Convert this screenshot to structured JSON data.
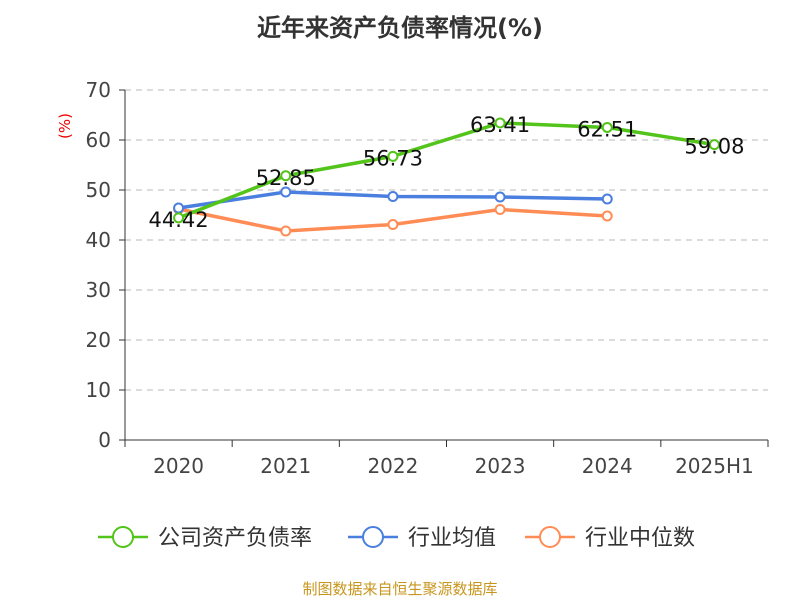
{
  "chart_data": {
    "type": "line",
    "title": "近年来资产负债率情况(%)",
    "ylabel": "(%)",
    "categories": [
      "2020",
      "2021",
      "2022",
      "2023",
      "2024",
      "2025H1"
    ],
    "ylim": [
      0,
      70
    ],
    "yticks": [
      0,
      10,
      20,
      30,
      40,
      50,
      60,
      70
    ],
    "grid": true,
    "legend_position": "bottom",
    "series": [
      {
        "name": "公司资产负债率",
        "color": "#52c41a",
        "values": [
          44.42,
          52.85,
          56.73,
          63.41,
          62.51,
          59.08
        ],
        "labels": [
          "44.42",
          "52.85",
          "56.73",
          "63.41",
          "62.51",
          "59.08"
        ]
      },
      {
        "name": "行业均值",
        "color": "#4a7fe0",
        "values": [
          46.4,
          49.6,
          48.7,
          48.6,
          48.2,
          null
        ]
      },
      {
        "name": "行业中位数",
        "color": "#ff8c55",
        "values": [
          46.2,
          41.8,
          43.1,
          46.1,
          44.8,
          null
        ]
      }
    ]
  },
  "source": "制图数据来自恒生聚源数据库"
}
